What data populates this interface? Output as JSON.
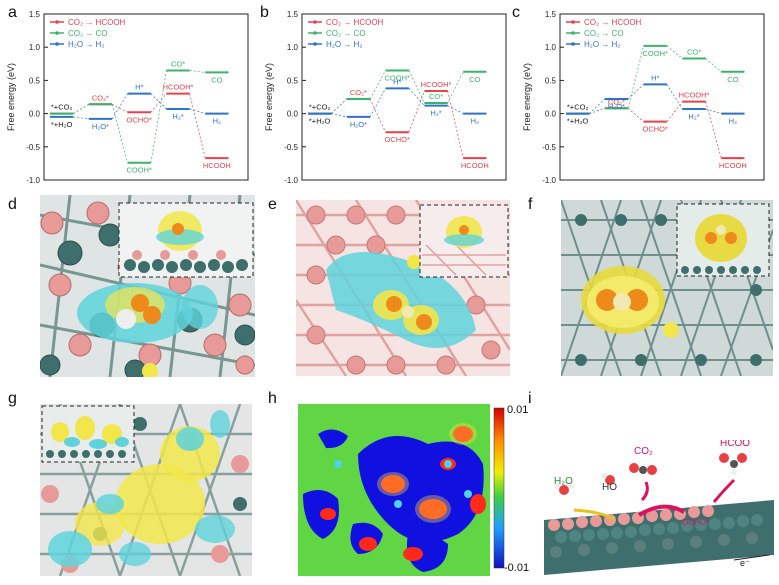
{
  "panel_letters": [
    "a",
    "b",
    "c",
    "d",
    "e",
    "f",
    "g",
    "h",
    "i"
  ],
  "colors": {
    "co2_hcooh": "#e8414a",
    "co2_co": "#3ab36a",
    "h2o_h2": "#2f73c9",
    "black": "#1a1a1a",
    "cyan_density": "#5fd3dc",
    "yellow_density": "#f2e64a",
    "atom_pink": "#e79a98",
    "atom_teal": "#3f6f6c"
  },
  "chart_data": [
    {
      "type": "line",
      "panel": "a",
      "ylabel": "Free energy (eV)",
      "ylim": [
        -1.0,
        1.5
      ],
      "yticks": [
        "-1.0",
        "-0.5",
        "0.0",
        "0.5",
        "1.0",
        "1.5"
      ],
      "legend": [
        "CO₂ → HCOOH",
        "CO₂ → CO",
        "H₂O → H₂"
      ],
      "series": [
        {
          "name": "CO₂ → HCOOH",
          "color": "#e8414a",
          "levels": [
            0.0,
            0.14,
            0.02,
            0.3,
            -0.67
          ],
          "labels": [
            "*+CO₂",
            "CO₂*",
            "OCHO*",
            "HCOOH*",
            "HCOOH"
          ]
        },
        {
          "name": "CO₂ → CO",
          "color": "#3ab36a",
          "levels": [
            0.0,
            0.14,
            -0.74,
            0.65,
            0.62
          ],
          "labels": [
            "",
            "",
            "COOH*",
            "CO*",
            "CO"
          ]
        },
        {
          "name": "H₂O → H₂",
          "color": "#2f73c9",
          "levels": [
            -0.05,
            -0.08,
            0.3,
            0.07,
            0.0
          ],
          "labels": [
            "*+H₂O",
            "H₂O*",
            "H*",
            "H₂*",
            "H₂"
          ]
        }
      ]
    },
    {
      "type": "line",
      "panel": "b",
      "ylabel": "Free energy (eV)",
      "ylim": [
        -1.0,
        1.5
      ],
      "yticks": [
        "-1.0",
        "-0.5",
        "0.0",
        "0.5",
        "1.0",
        "1.5"
      ],
      "legend": [
        "CO₂ → HCOOH",
        "CO₂ → CO",
        "H₂O → H₂"
      ],
      "series": [
        {
          "name": "CO₂ → HCOOH",
          "color": "#e8414a",
          "levels": [
            0.0,
            0.22,
            -0.28,
            0.34,
            -0.67
          ],
          "labels": [
            "*+CO₂",
            "CO₂*",
            "OCHO*",
            "HCOOH*",
            "HCOOH"
          ]
        },
        {
          "name": "CO₂ → CO",
          "color": "#3ab36a",
          "levels": [
            0.0,
            0.22,
            0.65,
            0.16,
            0.63
          ],
          "labels": [
            "",
            "",
            "COOH*",
            "CO*",
            "CO"
          ]
        },
        {
          "name": "H₂O → H₂",
          "color": "#2f73c9",
          "levels": [
            0.0,
            -0.05,
            0.38,
            0.12,
            0.0
          ],
          "labels": [
            "*+H₂O",
            "H₂O*",
            "H*",
            "H₂*",
            "H₂"
          ]
        }
      ]
    },
    {
      "type": "line",
      "panel": "c",
      "ylabel": "Free energy (eV)",
      "ylim": [
        -1.0,
        1.5
      ],
      "yticks": [
        "-1.0",
        "-0.5",
        "0.0",
        "0.5",
        "1.0",
        "1.5"
      ],
      "legend": [
        "CO₂ → HCOOH",
        "CO₂ → CO",
        "H₂O → H₂"
      ],
      "series": [
        {
          "name": "CO₂ → HCOOH",
          "color": "#e8414a",
          "levels": [
            0.0,
            0.08,
            -0.12,
            0.18,
            -0.67
          ],
          "labels": [
            "*+CO₂",
            "CO₂*",
            "OCHO*",
            "HCOOH*",
            "HCOOH"
          ]
        },
        {
          "name": "CO₂ → CO",
          "color": "#3ab36a",
          "levels": [
            0.0,
            0.08,
            1.02,
            0.83,
            0.63
          ],
          "labels": [
            "",
            "",
            "COOH*",
            "CO*",
            "CO"
          ]
        },
        {
          "name": "H₂O → H₂",
          "color": "#2f73c9",
          "levels": [
            0.0,
            0.22,
            0.44,
            0.07,
            0.0
          ],
          "labels": [
            "*+H₂O",
            "H₂O*",
            "H*",
            "H₂*",
            "H₂"
          ]
        }
      ]
    },
    {
      "type": "heatmap",
      "panel": "h",
      "colorbar": {
        "max_label": "0.01",
        "min_label": "-0.01"
      }
    }
  ],
  "panel_i": {
    "labels": [
      "H₂O",
      "HO",
      "CO₂",
      "HCOO",
      "OCHO*",
      "e⁻"
    ]
  }
}
